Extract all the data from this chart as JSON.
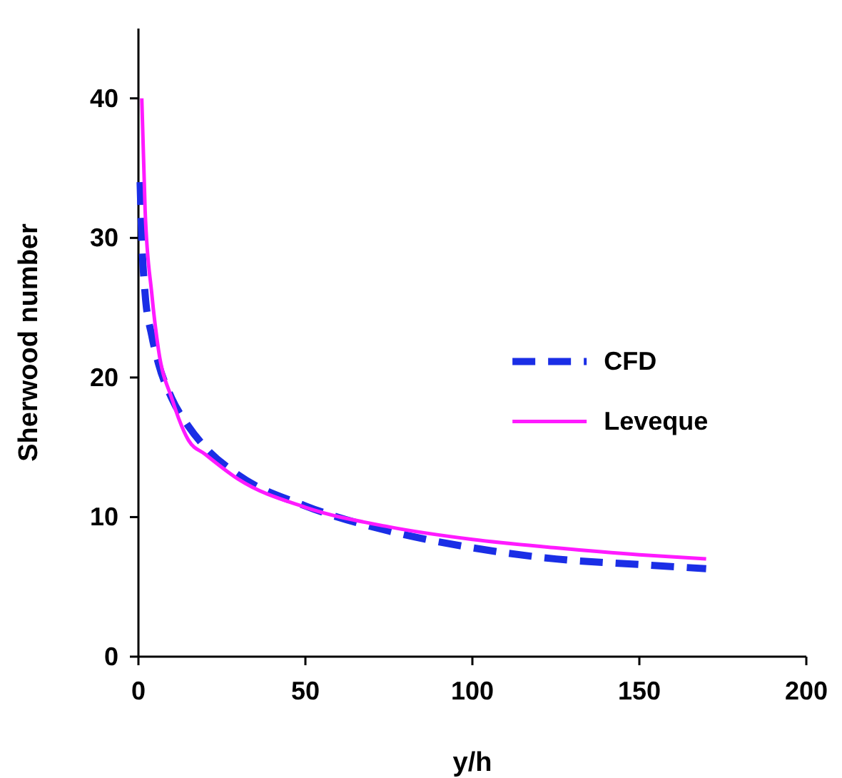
{
  "chart_data": {
    "type": "line",
    "xlabel": "y/h",
    "ylabel": "Sherwood number",
    "xlim": [
      0,
      200
    ],
    "ylim": [
      0,
      45
    ],
    "xticks": [
      0,
      50,
      100,
      150,
      200
    ],
    "yticks": [
      0,
      10,
      20,
      30,
      40
    ],
    "grid": false,
    "legend": "right",
    "marker": "none",
    "series": [
      {
        "name": "CFD",
        "color": "#1a2ee6",
        "line_style": "dashed",
        "x": [
          0.5,
          1,
          2,
          4,
          6,
          10,
          15,
          20,
          30,
          50,
          75,
          100,
          125,
          150,
          170
        ],
        "values": [
          34,
          30,
          26,
          23,
          21,
          18.5,
          16.5,
          15,
          13,
          10.8,
          9,
          7.8,
          7,
          6.6,
          6.3
        ]
      },
      {
        "name": "Leveque",
        "color": "#ff1aff",
        "line_style": "solid",
        "x": [
          1,
          2,
          4,
          6,
          10,
          15,
          20,
          30,
          50,
          75,
          100,
          125,
          150,
          170
        ],
        "values": [
          40,
          32,
          26,
          22,
          18.5,
          15.5,
          14.5,
          12.7,
          10.7,
          9.3,
          8.4,
          7.8,
          7.3,
          7
        ]
      }
    ]
  }
}
